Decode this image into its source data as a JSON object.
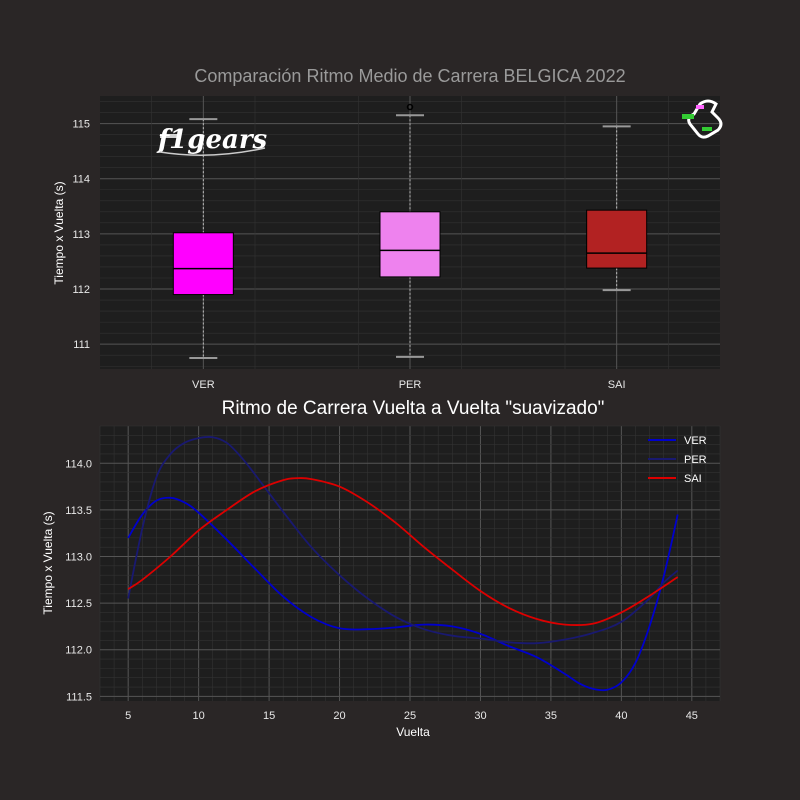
{
  "figure": {
    "title": "Comparación Ritmo Medio de Carrera BELGICA 2022",
    "logo_text": "f1gears",
    "colors": {
      "background": "#2a2626",
      "panel": "#1e1e1e"
    }
  },
  "chart_data": [
    {
      "type": "box",
      "title": "",
      "xlabel": "",
      "ylabel": "Tiempo x Vuelta (s)",
      "categories": [
        "VER",
        "PER",
        "SAI"
      ],
      "ylim": [
        110.55,
        115.5
      ],
      "yticks": [
        111,
        112,
        113,
        114,
        115
      ],
      "grid": true,
      "boxes": [
        {
          "name": "VER",
          "color": "#ff00ff",
          "whisker_low": 110.75,
          "q1": 111.9,
          "median": 112.37,
          "q3": 113.02,
          "whisker_high": 115.08,
          "outliers": []
        },
        {
          "name": "PER",
          "color": "#ee82ee",
          "whisker_low": 110.77,
          "q1": 112.22,
          "median": 112.7,
          "q3": 113.4,
          "whisker_high": 115.15,
          "outliers": [
            115.3
          ]
        },
        {
          "name": "SAI",
          "color": "#b22222",
          "whisker_low": 111.98,
          "q1": 112.38,
          "median": 112.65,
          "q3": 113.43,
          "whisker_high": 114.95,
          "outliers": []
        }
      ]
    },
    {
      "type": "line",
      "title": "Ritmo de Carrera Vuelta a Vuelta \"suavizado\"",
      "xlabel": "Vuelta",
      "ylabel": "Tiempo x Vuelta (s)",
      "xlim": [
        3,
        47
      ],
      "ylim": [
        111.45,
        114.4
      ],
      "xticks": [
        5,
        10,
        15,
        20,
        25,
        30,
        35,
        40,
        45
      ],
      "yticks": [
        111.5,
        112.0,
        112.5,
        113.0,
        113.5,
        114.0
      ],
      "ytick_labels": [
        "111.5",
        "112.0",
        "112.5",
        "113.0",
        "113.5",
        "114.0"
      ],
      "grid": true,
      "legend_position": "top-right",
      "series": [
        {
          "name": "VER",
          "color": "#0000cd",
          "x": [
            5,
            6,
            7,
            8,
            9,
            10,
            12,
            14,
            16,
            18,
            20,
            22,
            24,
            26,
            28,
            30,
            32,
            34,
            36,
            37,
            38,
            39,
            40,
            41,
            42,
            43,
            44
          ],
          "y": [
            113.2,
            113.45,
            113.6,
            113.63,
            113.58,
            113.47,
            113.18,
            112.87,
            112.57,
            112.35,
            112.23,
            112.22,
            112.24,
            112.27,
            112.25,
            112.17,
            112.04,
            111.92,
            111.74,
            111.64,
            111.58,
            111.57,
            111.65,
            111.86,
            112.25,
            112.78,
            113.45
          ]
        },
        {
          "name": "PER",
          "color": "#191970",
          "x": [
            5,
            6,
            7,
            8,
            9,
            10,
            11,
            12,
            13,
            14,
            16,
            18,
            20,
            22,
            24,
            26,
            28,
            30,
            32,
            34,
            36,
            38,
            40,
            42,
            43,
            44
          ],
          "y": [
            112.55,
            113.3,
            113.85,
            114.1,
            114.22,
            114.27,
            114.28,
            114.22,
            114.07,
            113.88,
            113.48,
            113.1,
            112.8,
            112.55,
            112.35,
            112.22,
            112.15,
            112.12,
            112.08,
            112.07,
            112.11,
            112.18,
            112.3,
            112.55,
            112.72,
            112.85
          ]
        },
        {
          "name": "SAI",
          "color": "#dd0000",
          "x": [
            5,
            6,
            8,
            10,
            12,
            14,
            16,
            17,
            18,
            20,
            22,
            24,
            26,
            28,
            30,
            32,
            34,
            36,
            38,
            40,
            42,
            44
          ],
          "y": [
            112.65,
            112.75,
            113.0,
            113.28,
            113.5,
            113.7,
            113.82,
            113.84,
            113.83,
            113.75,
            113.58,
            113.36,
            113.1,
            112.86,
            112.63,
            112.45,
            112.33,
            112.27,
            112.28,
            112.4,
            112.58,
            112.78
          ]
        }
      ]
    }
  ]
}
